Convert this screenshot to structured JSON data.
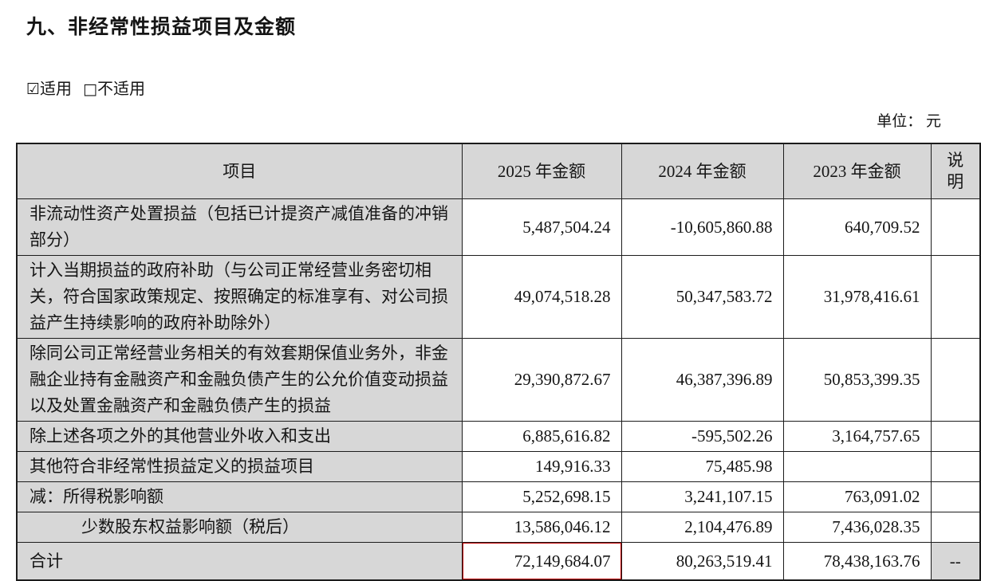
{
  "page": {
    "title": "九、非经常性损益项目及金额",
    "applicable": {
      "checkbox": "☑",
      "label": "适用"
    },
    "not_applicable": {
      "checkbox": "□",
      "label": "不适用"
    },
    "unit": "单位： 元"
  },
  "table": {
    "headers": {
      "item": "项目",
      "y2025": "2025 年金额",
      "y2024": "2024 年金额",
      "y2023": "2023 年金额",
      "note": "说明"
    },
    "rows": [
      {
        "item": "非流动性资产处置损益（包括已计提资产减值准备的冲销部分）",
        "y2025": "5,487,504.24",
        "y2024": "-10,605,860.88",
        "y2023": "640,709.52",
        "note": "",
        "indent": false,
        "highlight": false,
        "note_gray": false
      },
      {
        "item": "计入当期损益的政府补助（与公司正常经营业务密切相关，符合国家政策规定、按照确定的标准享有、对公司损益产生持续影响的政府补助除外）",
        "y2025": "49,074,518.28",
        "y2024": "50,347,583.72",
        "y2023": "31,978,416.61",
        "note": "",
        "indent": false,
        "highlight": false,
        "note_gray": false
      },
      {
        "item": "除同公司正常经营业务相关的有效套期保值业务外，非金融企业持有金融资产和金融负债产生的公允价值变动损益以及处置金融资产和金融负债产生的损益",
        "y2025": "29,390,872.67",
        "y2024": "46,387,396.89",
        "y2023": "50,853,399.35",
        "note": "",
        "indent": false,
        "highlight": false,
        "note_gray": false
      },
      {
        "item": "除上述各项之外的其他营业外收入和支出",
        "y2025": "6,885,616.82",
        "y2024": "-595,502.26",
        "y2023": "3,164,757.65",
        "note": "",
        "indent": false,
        "highlight": false,
        "note_gray": false
      },
      {
        "item": "其他符合非经常性损益定义的损益项目",
        "y2025": "149,916.33",
        "y2024": "75,485.98",
        "y2023": "",
        "note": "",
        "indent": false,
        "highlight": false,
        "note_gray": false
      },
      {
        "item": "减：所得税影响额",
        "y2025": "5,252,698.15",
        "y2024": "3,241,107.15",
        "y2023": "763,091.02",
        "note": "",
        "indent": false,
        "highlight": false,
        "note_gray": false
      },
      {
        "item": "少数股东权益影响额（税后）",
        "y2025": "13,586,046.12",
        "y2024": "2,104,476.89",
        "y2023": "7,436,028.35",
        "note": "",
        "indent": true,
        "highlight": false,
        "note_gray": false
      },
      {
        "item": "合计",
        "y2025": "72,149,684.07",
        "y2024": "80,263,519.41",
        "y2023": "78,438,163.76",
        "note": "--",
        "indent": false,
        "highlight": true,
        "note_gray": true,
        "total": true
      }
    ]
  },
  "colors": {
    "cell_gray": "#d7d7d7",
    "border": "#1c1c1c",
    "highlight_red": "#c00000"
  }
}
